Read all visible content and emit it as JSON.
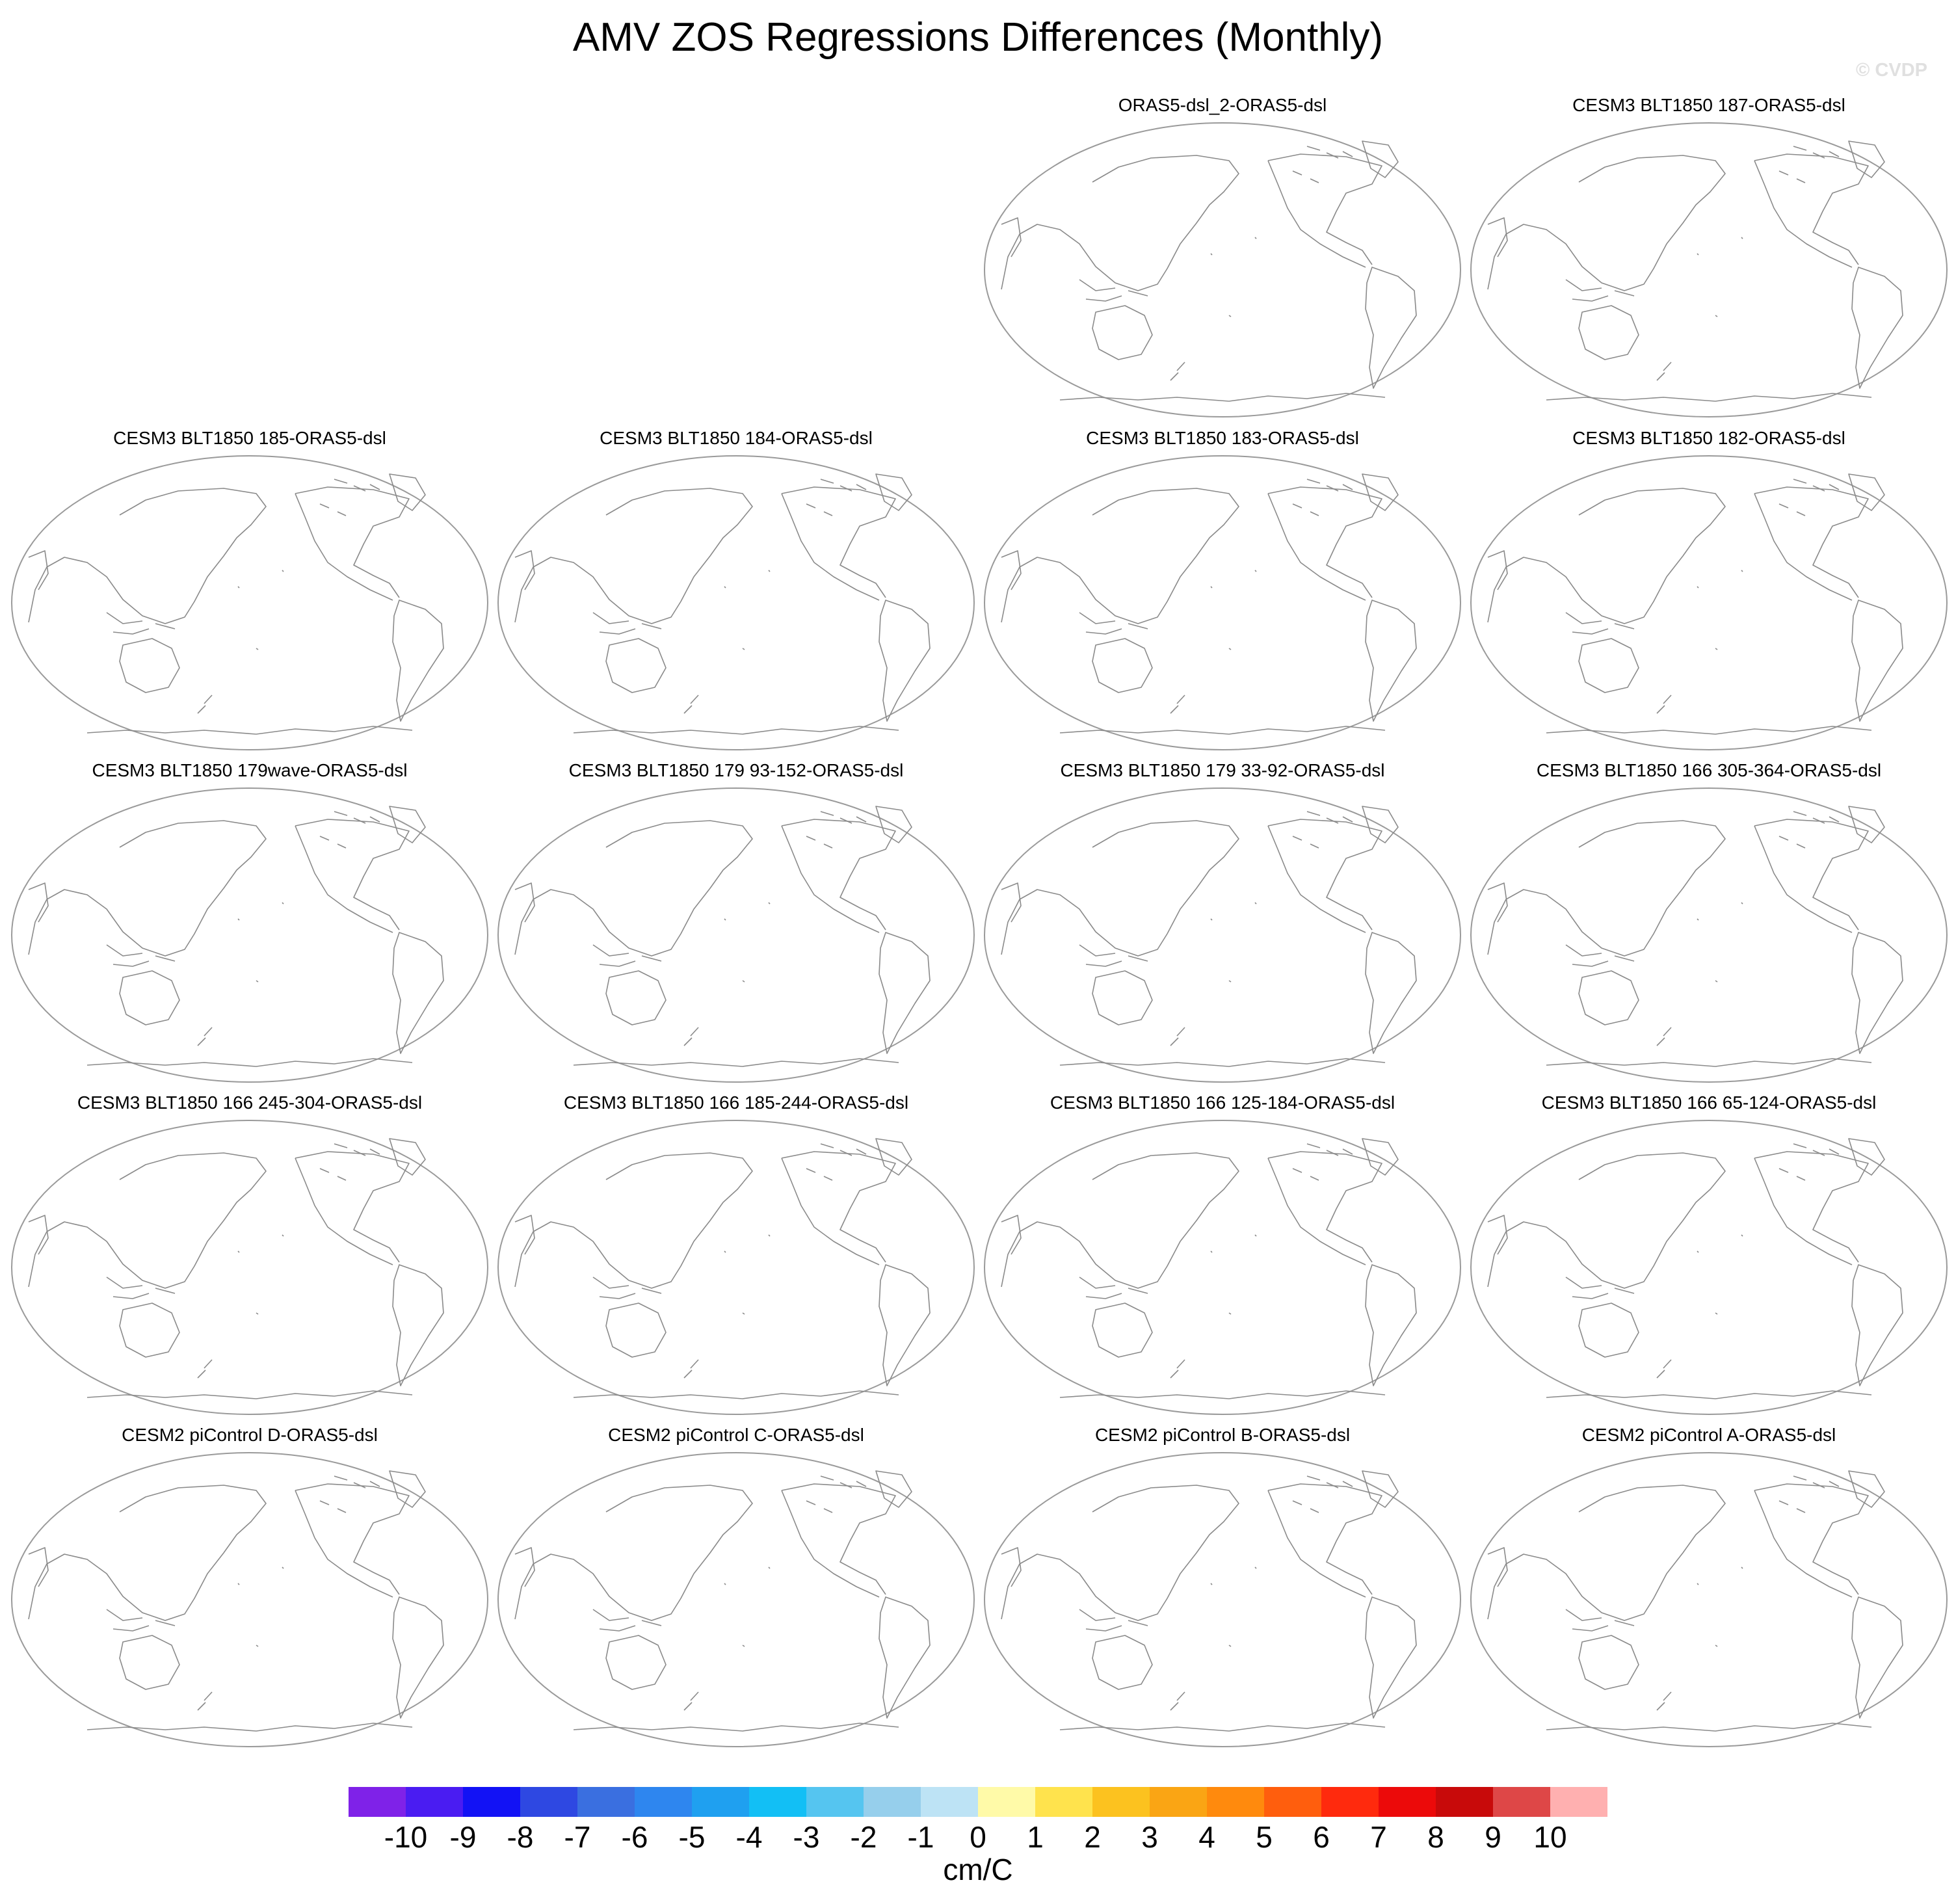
{
  "title": "AMV ZOS Regressions Differences (Monthly)",
  "watermark": "© CVDP",
  "panels": [
    {
      "row": 0,
      "col": 2,
      "title": "ORAS5-dsl_2-ORAS5-dsl"
    },
    {
      "row": 0,
      "col": 3,
      "title": "CESM3 BLT1850 187-ORAS5-dsl"
    },
    {
      "row": 1,
      "col": 0,
      "title": "CESM3 BLT1850 185-ORAS5-dsl"
    },
    {
      "row": 1,
      "col": 1,
      "title": "CESM3 BLT1850 184-ORAS5-dsl"
    },
    {
      "row": 1,
      "col": 2,
      "title": "CESM3 BLT1850 183-ORAS5-dsl"
    },
    {
      "row": 1,
      "col": 3,
      "title": "CESM3 BLT1850 182-ORAS5-dsl"
    },
    {
      "row": 2,
      "col": 0,
      "title": "CESM3 BLT1850 179wave-ORAS5-dsl"
    },
    {
      "row": 2,
      "col": 1,
      "title": "CESM3 BLT1850 179 93-152-ORAS5-dsl"
    },
    {
      "row": 2,
      "col": 2,
      "title": "CESM3 BLT1850 179 33-92-ORAS5-dsl"
    },
    {
      "row": 2,
      "col": 3,
      "title": "CESM3 BLT1850 166 305-364-ORAS5-dsl"
    },
    {
      "row": 3,
      "col": 0,
      "title": "CESM3 BLT1850 166 245-304-ORAS5-dsl"
    },
    {
      "row": 3,
      "col": 1,
      "title": "CESM3 BLT1850 166 185-244-ORAS5-dsl"
    },
    {
      "row": 3,
      "col": 2,
      "title": "CESM3 BLT1850 166 125-184-ORAS5-dsl"
    },
    {
      "row": 3,
      "col": 3,
      "title": "CESM3 BLT1850 166 65-124-ORAS5-dsl"
    },
    {
      "row": 4,
      "col": 0,
      "title": "CESM2 piControl D-ORAS5-dsl"
    },
    {
      "row": 4,
      "col": 1,
      "title": "CESM2 piControl C-ORAS5-dsl"
    },
    {
      "row": 4,
      "col": 2,
      "title": "CESM2 piControl B-ORAS5-dsl"
    },
    {
      "row": 4,
      "col": 3,
      "title": "CESM2 piControl A-ORAS5-dsl"
    }
  ],
  "colorbar": {
    "unit": "cm/C",
    "colors": [
      "#7f22e8",
      "#4a1cf2",
      "#1212f5",
      "#2e48e2",
      "#3a6fe0",
      "#2e86ef",
      "#1fa0f0",
      "#12bff5",
      "#55c5f0",
      "#96cfec",
      "#bde3f5",
      "#fffaa8",
      "#ffe34d",
      "#fcc21f",
      "#faa514",
      "#ff8a0d",
      "#ff5e0d",
      "#ff2a0d",
      "#ec0a0a",
      "#c80a0a",
      "#de4747",
      "#ffb0b0"
    ],
    "ticks": [
      "-10",
      "-9",
      "-8",
      "-7",
      "-6",
      "-5",
      "-4",
      "-3",
      "-2",
      "-1",
      "0",
      "1",
      "2",
      "3",
      "4",
      "5",
      "6",
      "7",
      "8",
      "9",
      "10"
    ]
  }
}
